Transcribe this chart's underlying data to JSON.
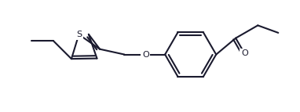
{
  "bg_color": "#ffffff",
  "line_color": "#1a1a2e",
  "line_width": 1.5,
  "fig_width": 3.82,
  "fig_height": 1.43,
  "dpi": 100,
  "xlim": [
    0.0,
    9.5
  ],
  "ylim": [
    0.5,
    4.2
  ]
}
